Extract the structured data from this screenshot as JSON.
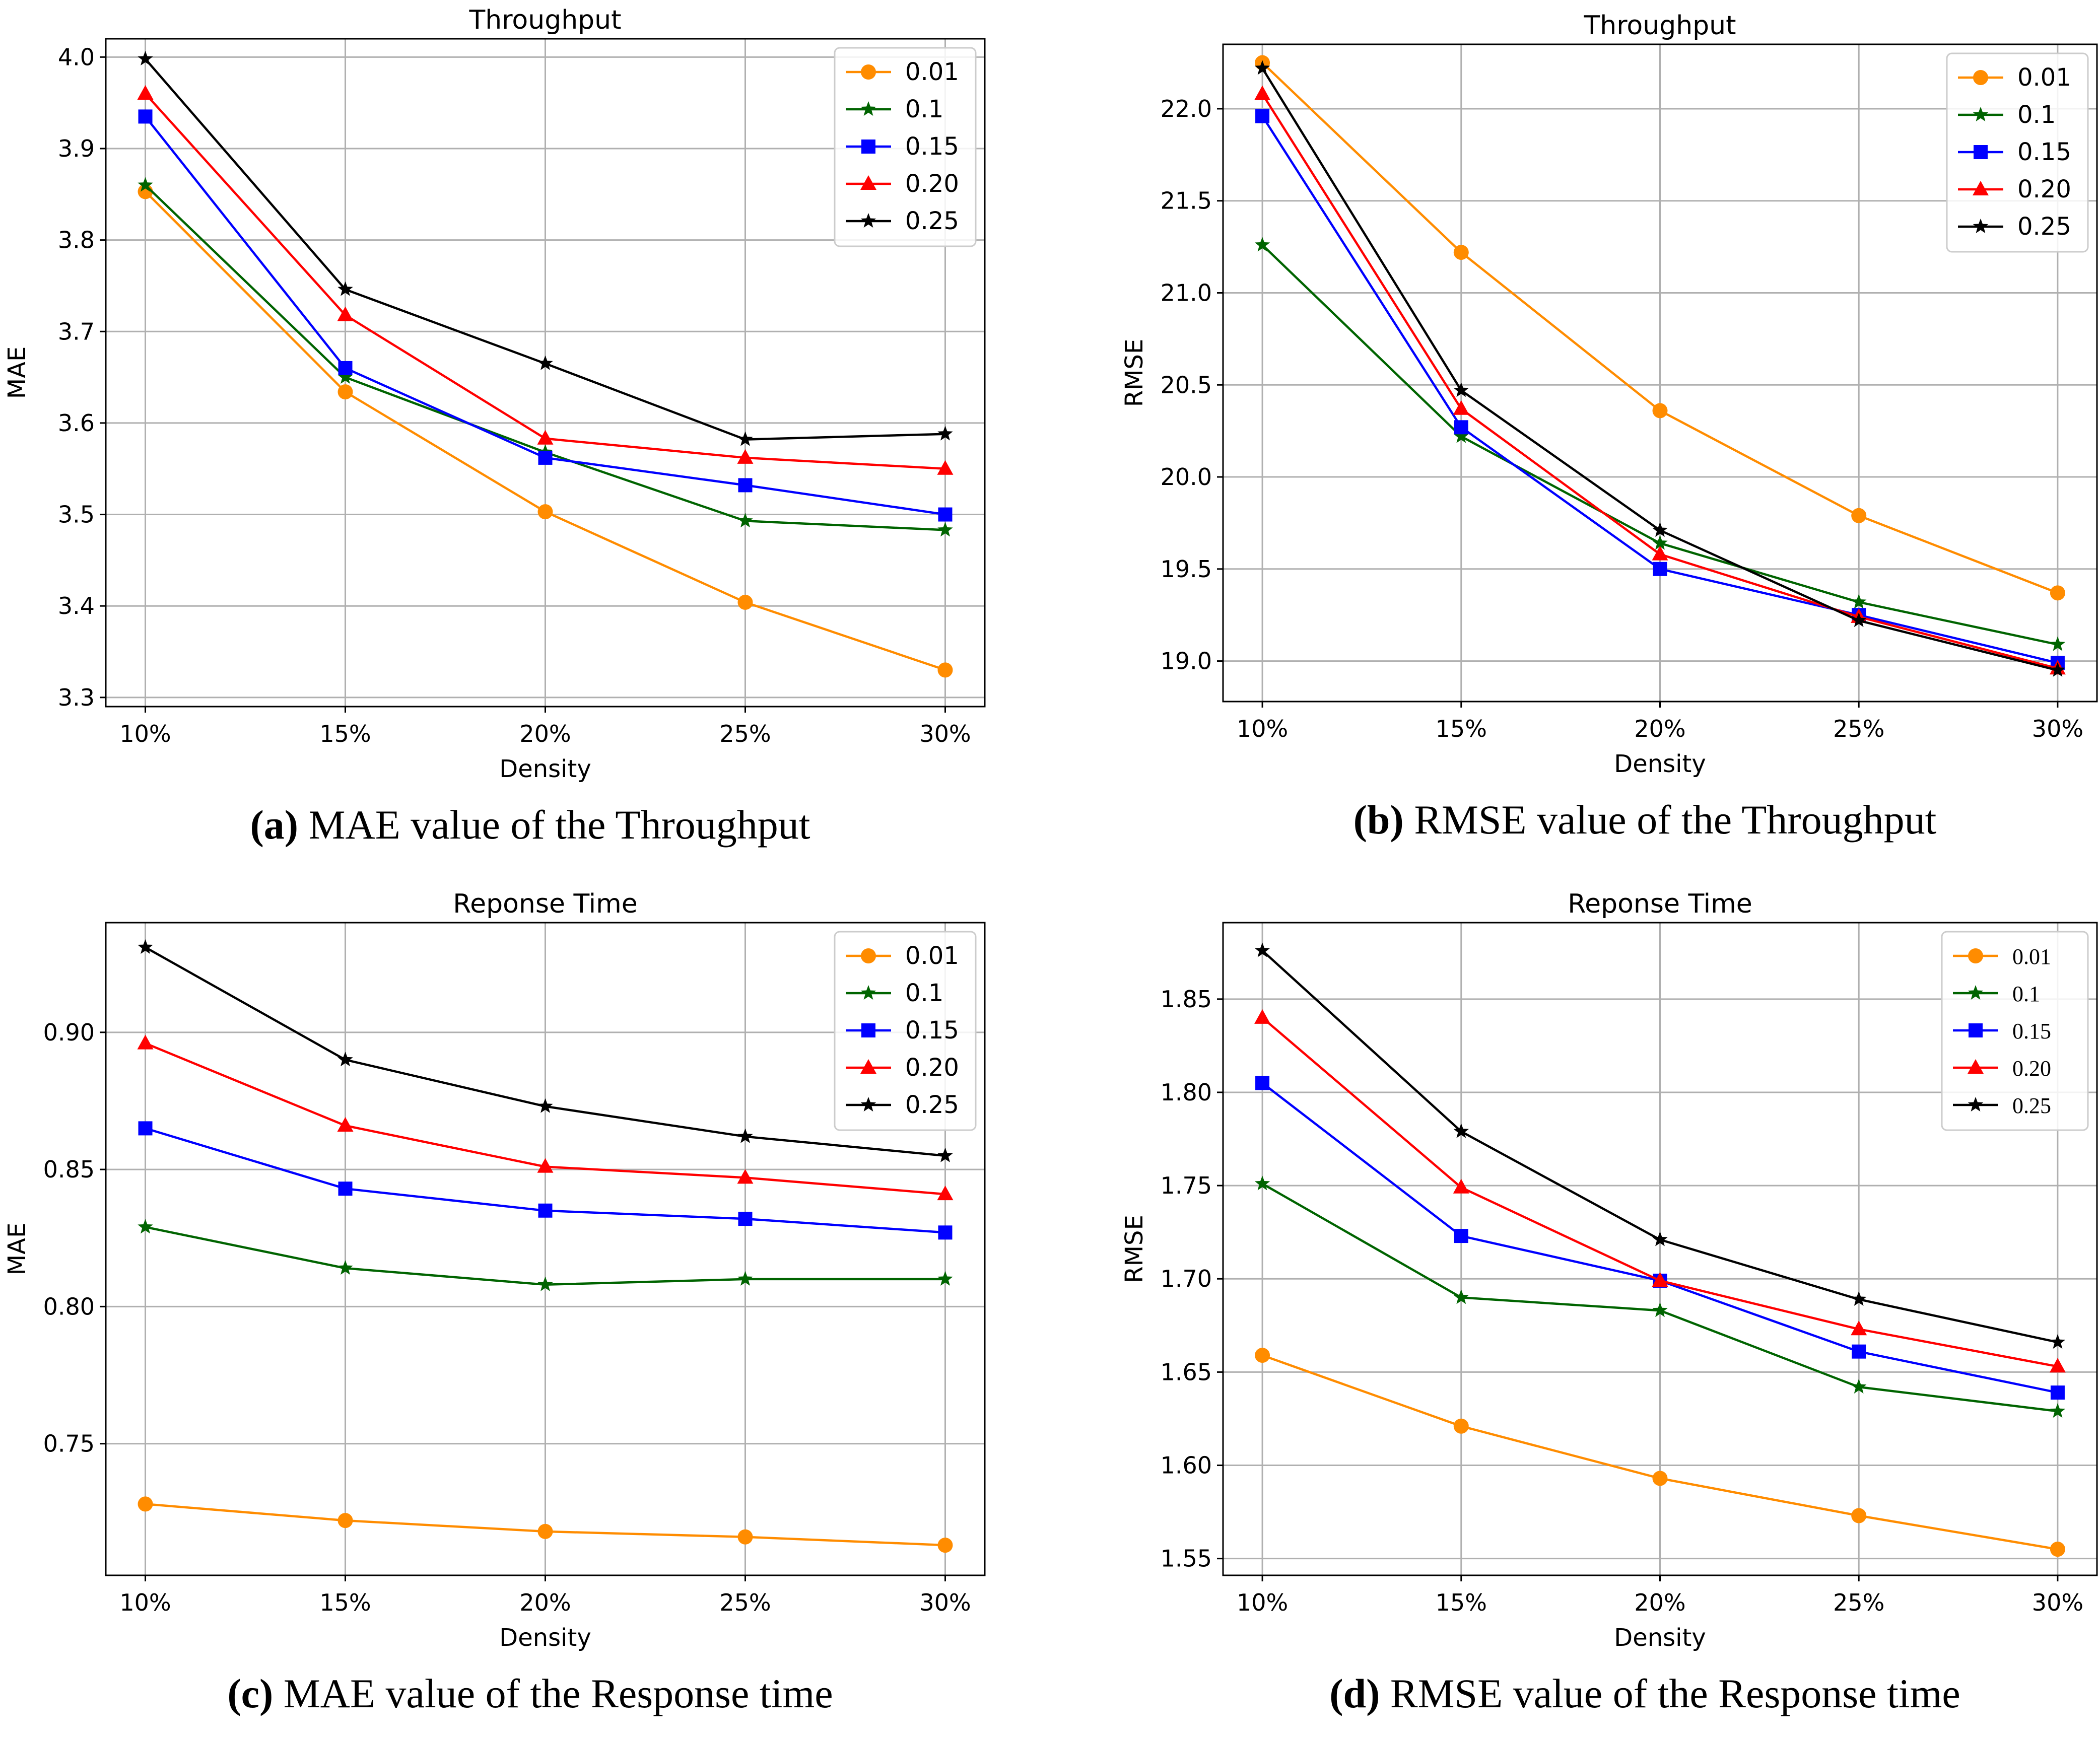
{
  "colors": {
    "0.01": "#ff8c00",
    "0.1": "#006400",
    "0.15": "#0000ff",
    "0.20": "#ff0000",
    "0.25": "#000000",
    "grid": "#b0b0b0",
    "axis": "#000000"
  },
  "chart_data": [
    {
      "type": "line",
      "title": "Throughput",
      "xlabel": "Density",
      "ylabel": "MAE",
      "categories": [
        "10%",
        "15%",
        "20%",
        "25%",
        "30%"
      ],
      "ylim": [
        3.29,
        4.02
      ],
      "yticks": [
        3.3,
        3.4,
        3.5,
        3.6,
        3.7,
        3.8,
        3.9,
        4.0
      ],
      "ytick_labels": [
        "3.3",
        "3.4",
        "3.5",
        "3.6",
        "3.7",
        "3.8",
        "3.9",
        "4.0"
      ],
      "legend": "top-right",
      "caption_letter": "(a)",
      "caption_text": " MAE value of the Throughput",
      "series": [
        {
          "name": "0.01",
          "marker": "circle",
          "values": [
            3.853,
            3.634,
            3.503,
            3.404,
            3.33
          ]
        },
        {
          "name": "0.1",
          "marker": "star",
          "values": [
            3.86,
            3.65,
            3.568,
            3.493,
            3.483
          ]
        },
        {
          "name": "0.15",
          "marker": "square",
          "values": [
            3.935,
            3.66,
            3.562,
            3.532,
            3.5
          ]
        },
        {
          "name": "0.20",
          "marker": "triangle",
          "values": [
            3.96,
            3.718,
            3.583,
            3.562,
            3.55
          ]
        },
        {
          "name": "0.25",
          "marker": "star",
          "values": [
            3.998,
            3.746,
            3.665,
            3.582,
            3.588
          ]
        }
      ]
    },
    {
      "type": "line",
      "title": "Throughput",
      "xlabel": "Density",
      "ylabel": "RMSE",
      "categories": [
        "10%",
        "15%",
        "20%",
        "25%",
        "30%"
      ],
      "ylim": [
        18.78,
        22.35
      ],
      "yticks": [
        19.0,
        19.5,
        20.0,
        20.5,
        21.0,
        21.5,
        22.0
      ],
      "ytick_labels": [
        "19.0",
        "19.5",
        "20.0",
        "20.5",
        "21.0",
        "21.5",
        "22.0"
      ],
      "legend": "top-right",
      "caption_letter": "(b)",
      "caption_text": " RMSE value of the Throughput",
      "series": [
        {
          "name": "0.01",
          "marker": "circle",
          "values": [
            22.25,
            21.22,
            20.36,
            19.79,
            19.37
          ]
        },
        {
          "name": "0.1",
          "marker": "star",
          "values": [
            21.26,
            20.22,
            19.64,
            19.32,
            19.09
          ]
        },
        {
          "name": "0.15",
          "marker": "square",
          "values": [
            21.96,
            20.27,
            19.5,
            19.25,
            18.99
          ]
        },
        {
          "name": "0.20",
          "marker": "triangle",
          "values": [
            22.08,
            20.37,
            19.58,
            19.24,
            18.96
          ]
        },
        {
          "name": "0.25",
          "marker": "star",
          "values": [
            22.22,
            20.47,
            19.71,
            19.22,
            18.95
          ]
        }
      ]
    },
    {
      "type": "line",
      "title": "Reponse Time",
      "xlabel": "Density",
      "ylabel": "MAE",
      "categories": [
        "10%",
        "15%",
        "20%",
        "25%",
        "30%"
      ],
      "ylim": [
        0.702,
        0.94
      ],
      "yticks": [
        0.75,
        0.8,
        0.85,
        0.9
      ],
      "ytick_labels": [
        "0.75",
        "0.80",
        "0.85",
        "0.90"
      ],
      "legend": "top-right",
      "caption_letter": "(c)",
      "caption_text": " MAE value of the Response time",
      "series": [
        {
          "name": "0.01",
          "marker": "circle",
          "values": [
            0.728,
            0.722,
            0.718,
            0.716,
            0.713
          ]
        },
        {
          "name": "0.1",
          "marker": "star",
          "values": [
            0.829,
            0.814,
            0.808,
            0.81,
            0.81
          ]
        },
        {
          "name": "0.15",
          "marker": "square",
          "values": [
            0.865,
            0.843,
            0.835,
            0.832,
            0.827
          ]
        },
        {
          "name": "0.20",
          "marker": "triangle",
          "values": [
            0.896,
            0.866,
            0.851,
            0.847,
            0.841
          ]
        },
        {
          "name": "0.25",
          "marker": "star",
          "values": [
            0.931,
            0.89,
            0.873,
            0.862,
            0.855
          ]
        }
      ]
    },
    {
      "type": "line",
      "title": "Reponse Time",
      "xlabel": "Density",
      "ylabel": "RMSE",
      "categories": [
        "10%",
        "15%",
        "20%",
        "25%",
        "30%"
      ],
      "ylim": [
        1.541,
        1.891
      ],
      "yticks": [
        1.55,
        1.6,
        1.65,
        1.7,
        1.75,
        1.8,
        1.85
      ],
      "ytick_labels": [
        "1.55",
        "1.60",
        "1.65",
        "1.70",
        "1.75",
        "1.80",
        "1.85"
      ],
      "legend": "top-right",
      "legend_serif": true,
      "caption_letter": "(d)",
      "caption_text": " RMSE value of the Response time",
      "series": [
        {
          "name": "0.01",
          "marker": "circle",
          "values": [
            1.659,
            1.621,
            1.593,
            1.573,
            1.555
          ]
        },
        {
          "name": "0.1",
          "marker": "star",
          "values": [
            1.751,
            1.69,
            1.683,
            1.642,
            1.629
          ]
        },
        {
          "name": "0.15",
          "marker": "square",
          "values": [
            1.805,
            1.723,
            1.699,
            1.661,
            1.639
          ]
        },
        {
          "name": "0.20",
          "marker": "triangle",
          "values": [
            1.84,
            1.749,
            1.699,
            1.673,
            1.653
          ]
        },
        {
          "name": "0.25",
          "marker": "star",
          "values": [
            1.876,
            1.779,
            1.721,
            1.689,
            1.666
          ]
        }
      ]
    }
  ]
}
